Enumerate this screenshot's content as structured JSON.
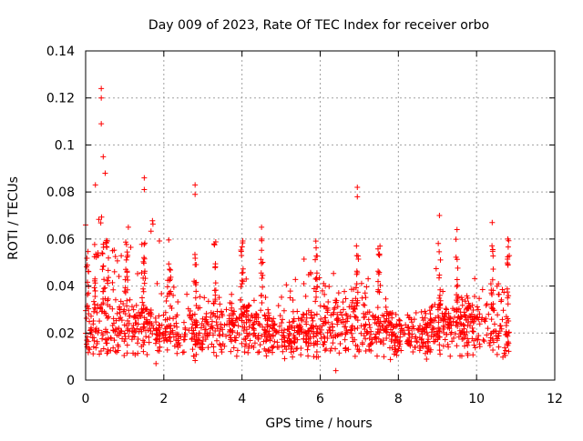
{
  "chart_data": {
    "type": "scatter",
    "title": "Day 009 of 2023, Rate Of TEC Index for receiver orbo",
    "xlabel": "GPS time / hours",
    "ylabel": "ROTI / TECUs",
    "xlim": [
      0,
      12
    ],
    "ylim": [
      0,
      0.14
    ],
    "x_ticks": [
      0,
      2,
      4,
      6,
      8,
      10,
      12
    ],
    "y_ticks": [
      0,
      0.02,
      0.04,
      0.06,
      0.08,
      0.1,
      0.12,
      0.14
    ],
    "x_tick_labels": [
      "0",
      "2",
      "4",
      "6",
      "8",
      "10",
      "12"
    ],
    "y_tick_labels": [
      "0",
      "0.02",
      "0.04",
      "0.06",
      "0.08",
      "0.1",
      "0.12",
      "0.14"
    ],
    "grid": true,
    "marker": "+",
    "color": "#ff0000",
    "series": [
      {
        "name": "ROTI",
        "x_range": [
          0,
          10.85
        ],
        "typical_range": [
          0.008,
          0.045
        ],
        "notable_points": [
          {
            "x": 0.4,
            "y": 0.124
          },
          {
            "x": 0.4,
            "y": 0.12
          },
          {
            "x": 0.4,
            "y": 0.109
          },
          {
            "x": 0.45,
            "y": 0.095
          },
          {
            "x": 0.5,
            "y": 0.088
          },
          {
            "x": 0.25,
            "y": 0.083
          },
          {
            "x": 1.5,
            "y": 0.086
          },
          {
            "x": 1.5,
            "y": 0.081
          },
          {
            "x": 2.8,
            "y": 0.083
          },
          {
            "x": 2.8,
            "y": 0.079
          },
          {
            "x": 6.95,
            "y": 0.082
          },
          {
            "x": 6.95,
            "y": 0.078
          },
          {
            "x": 9.05,
            "y": 0.07
          },
          {
            "x": 10.4,
            "y": 0.067
          },
          {
            "x": 0.0,
            "y": 0.066
          },
          {
            "x": 4.5,
            "y": 0.065
          },
          {
            "x": 9.5,
            "y": 0.064
          },
          {
            "x": 10.8,
            "y": 0.06
          },
          {
            "x": 6.4,
            "y": 0.004
          },
          {
            "x": 1.8,
            "y": 0.007
          }
        ]
      }
    ]
  }
}
